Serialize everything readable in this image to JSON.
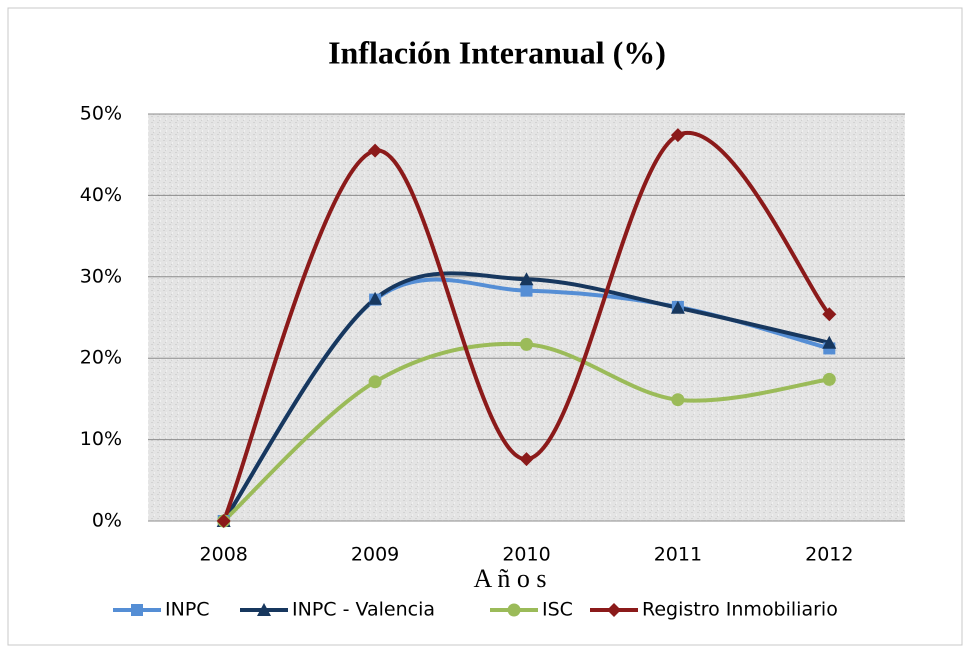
{
  "chart_data": {
    "type": "line",
    "title": "Inflación Interanual (%)",
    "x_label": "A ñ o s",
    "categories": [
      "2008",
      "2009",
      "2010",
      "2011",
      "2012"
    ],
    "series": [
      {
        "name": "INPC",
        "color": "#558ed5",
        "marker": "square",
        "values": [
          0,
          27.2,
          28.3,
          26.3,
          21.2
        ]
      },
      {
        "name": "INPC - Valencia",
        "color": "#17375e",
        "marker": "triangle",
        "values": [
          0,
          27.3,
          29.7,
          26.2,
          21.9
        ]
      },
      {
        "name": "ISC",
        "color": "#9bbb59",
        "marker": "circle",
        "values": [
          0,
          17.1,
          21.7,
          14.9,
          17.4
        ]
      },
      {
        "name": "Registro Inmobiliario",
        "color": "#8b1a1a",
        "marker": "diamond",
        "values": [
          0,
          45.5,
          7.6,
          47.4,
          25.4
        ]
      }
    ],
    "ylim": [
      0,
      50
    ],
    "yticks": [
      {
        "value": 0,
        "label": "0%"
      },
      {
        "value": 10,
        "label": "10%"
      },
      {
        "value": 20,
        "label": "20%"
      },
      {
        "value": 30,
        "label": "30%"
      },
      {
        "value": 40,
        "label": "40%"
      },
      {
        "value": 50,
        "label": "50%"
      }
    ],
    "grid": true,
    "smooth": true,
    "legend": "bottom"
  }
}
